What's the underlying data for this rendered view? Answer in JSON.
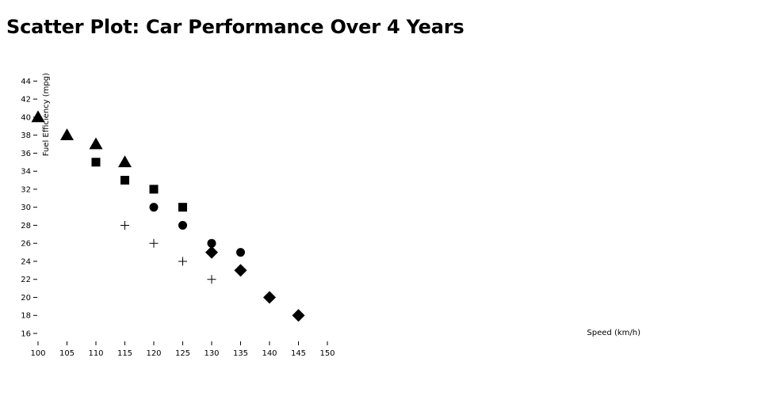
{
  "title": "Scatter Plot: Car Performance Over 4 Years",
  "chart_data": {
    "type": "scatter",
    "title": "Scatter Plot: Car Performance Over 4 Years",
    "xlabel": "Speed (km/h)",
    "ylabel": "Fuel Efficiency (mpg)",
    "xlim": [
      100,
      150
    ],
    "ylim": [
      15,
      45
    ],
    "x_ticks": [
      100,
      105,
      110,
      115,
      120,
      125,
      130,
      135,
      140,
      145,
      150
    ],
    "y_ticks": [
      16,
      18,
      20,
      22,
      24,
      26,
      28,
      30,
      32,
      34,
      36,
      38,
      40,
      42,
      44
    ],
    "grid": false,
    "legend": false,
    "series": [
      {
        "marker": "triangle",
        "color": "#000000",
        "points": [
          [
            100,
            40
          ],
          [
            105,
            38
          ],
          [
            110,
            37
          ],
          [
            115,
            35
          ]
        ]
      },
      {
        "marker": "square",
        "color": "#000000",
        "points": [
          [
            110,
            35
          ],
          [
            115,
            33
          ],
          [
            120,
            32
          ],
          [
            125,
            30
          ]
        ]
      },
      {
        "marker": "circle",
        "color": "#000000",
        "points": [
          [
            120,
            30
          ],
          [
            125,
            28
          ],
          [
            130,
            26
          ],
          [
            135,
            25
          ]
        ]
      },
      {
        "marker": "cross",
        "color": "#000000",
        "points": [
          [
            115,
            28
          ],
          [
            120,
            26
          ],
          [
            125,
            24
          ],
          [
            130,
            22
          ]
        ]
      },
      {
        "marker": "diamond",
        "color": "#000000",
        "points": [
          [
            130,
            25
          ],
          [
            135,
            23
          ],
          [
            140,
            20
          ],
          [
            145,
            18
          ]
        ]
      }
    ]
  }
}
